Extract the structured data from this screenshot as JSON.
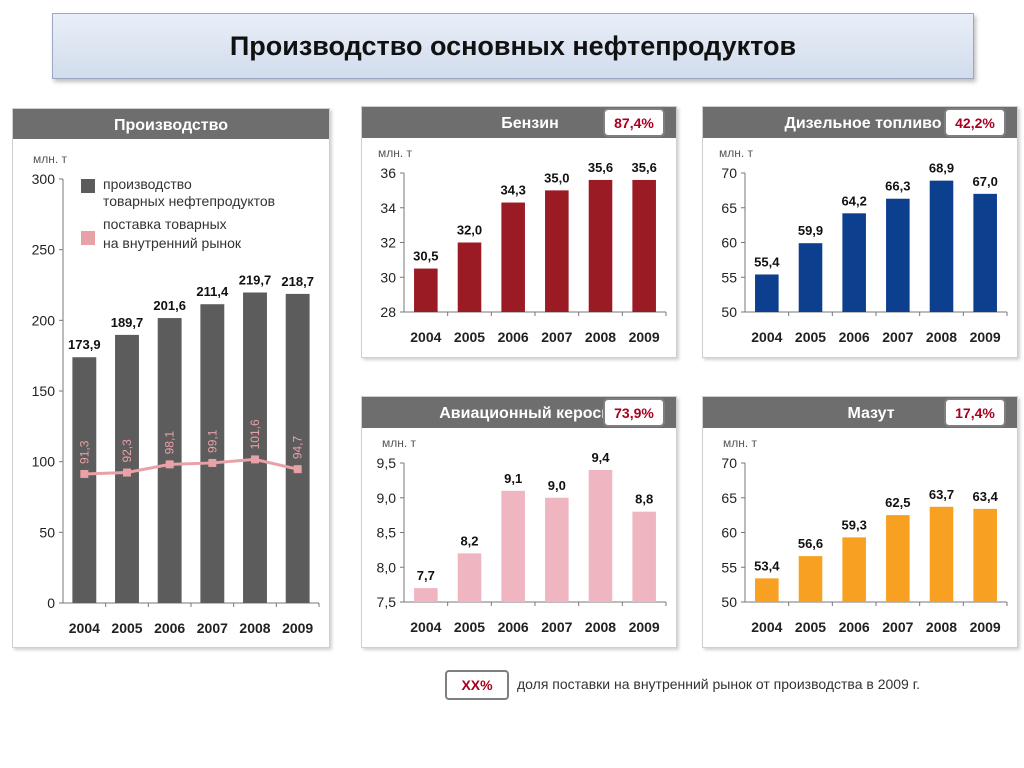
{
  "page_title": "Производство основных нефтепродуктов",
  "note": {
    "badge": "XX%",
    "text": "доля поставки на внутренний рынок от производства в 2009 г."
  },
  "chart_data": [
    {
      "id": "production",
      "type": "bar",
      "title": "Производство",
      "unit": "млн. т",
      "categories": [
        "2004",
        "2005",
        "2006",
        "2007",
        "2008",
        "2009"
      ],
      "ylim": [
        0,
        300
      ],
      "yticks": [
        0,
        50,
        100,
        150,
        200,
        250,
        300
      ],
      "series": [
        {
          "name": "производство товарных нефтепродуктов",
          "type": "bar",
          "color": "#5c5c5c",
          "values": [
            173.9,
            189.7,
            201.6,
            211.4,
            219.7,
            218.7
          ],
          "labels": [
            "173,9",
            "189,7",
            "201,6",
            "211,4",
            "219,7",
            "218,7"
          ]
        },
        {
          "name": "поставка товарных на внутренний рынок",
          "type": "line",
          "color": "#e8a1a7",
          "values": [
            91.3,
            92.3,
            98.1,
            99.1,
            101.6,
            94.7
          ],
          "labels": [
            "91,3",
            "92,3",
            "98,1",
            "99,1",
            "101,6",
            "94,7"
          ]
        }
      ],
      "legend": [
        "производство\nтоварных нефтепродуктов",
        "поставка товарных\nна внутренний рынок"
      ]
    },
    {
      "id": "gasoline",
      "type": "bar",
      "title": "Бензин",
      "badge": "87,4%",
      "unit": "млн. т",
      "categories": [
        "2004",
        "2005",
        "2006",
        "2007",
        "2008",
        "2009"
      ],
      "ylim": [
        28,
        36
      ],
      "yticks": [
        28,
        30,
        32,
        34,
        36
      ],
      "color": "#9b1b24",
      "values": [
        30.5,
        32.0,
        34.3,
        35.0,
        35.6,
        35.6
      ],
      "labels": [
        "30,5",
        "32,0",
        "34,3",
        "35,0",
        "35,6",
        "35,6"
      ]
    },
    {
      "id": "diesel",
      "type": "bar",
      "title": "Дизельное топливо",
      "badge": "42,2%",
      "unit": "млн. т",
      "categories": [
        "2004",
        "2005",
        "2006",
        "2007",
        "2008",
        "2009"
      ],
      "ylim": [
        50,
        70
      ],
      "yticks": [
        50,
        55,
        60,
        65,
        70
      ],
      "color": "#0d3f8f",
      "values": [
        55.4,
        59.9,
        64.2,
        66.3,
        68.9,
        67.0
      ],
      "labels": [
        "55,4",
        "59,9",
        "64,2",
        "66,3",
        "68,9",
        "67,0"
      ]
    },
    {
      "id": "kerosene",
      "type": "bar",
      "title": "Авиационный керосин",
      "badge": "73,9%",
      "unit": "млн. т",
      "categories": [
        "2004",
        "2005",
        "2006",
        "2007",
        "2008",
        "2009"
      ],
      "ylim": [
        7.5,
        9.5
      ],
      "yticks": [
        7.5,
        8.0,
        8.5,
        9.0,
        9.5
      ],
      "ytick_labels": [
        "7,5",
        "8,0",
        "8,5",
        "9,0",
        "9,5"
      ],
      "color": "#efb6c1",
      "values": [
        7.7,
        8.2,
        9.1,
        9.0,
        9.4,
        8.8
      ],
      "labels": [
        "7,7",
        "8,2",
        "9,1",
        "9,0",
        "9,4",
        "8,8"
      ]
    },
    {
      "id": "fuel_oil",
      "type": "bar",
      "title": "Мазут",
      "badge": "17,4%",
      "unit": "млн. т",
      "categories": [
        "2004",
        "2005",
        "2006",
        "2007",
        "2008",
        "2009"
      ],
      "ylim": [
        50,
        70
      ],
      "yticks": [
        50,
        55,
        60,
        65,
        70
      ],
      "color": "#f7a021",
      "values": [
        53.4,
        56.6,
        59.3,
        62.5,
        63.7,
        63.4
      ],
      "labels": [
        "53,4",
        "56,6",
        "59,3",
        "62,5",
        "63,7",
        "63,4"
      ]
    }
  ]
}
